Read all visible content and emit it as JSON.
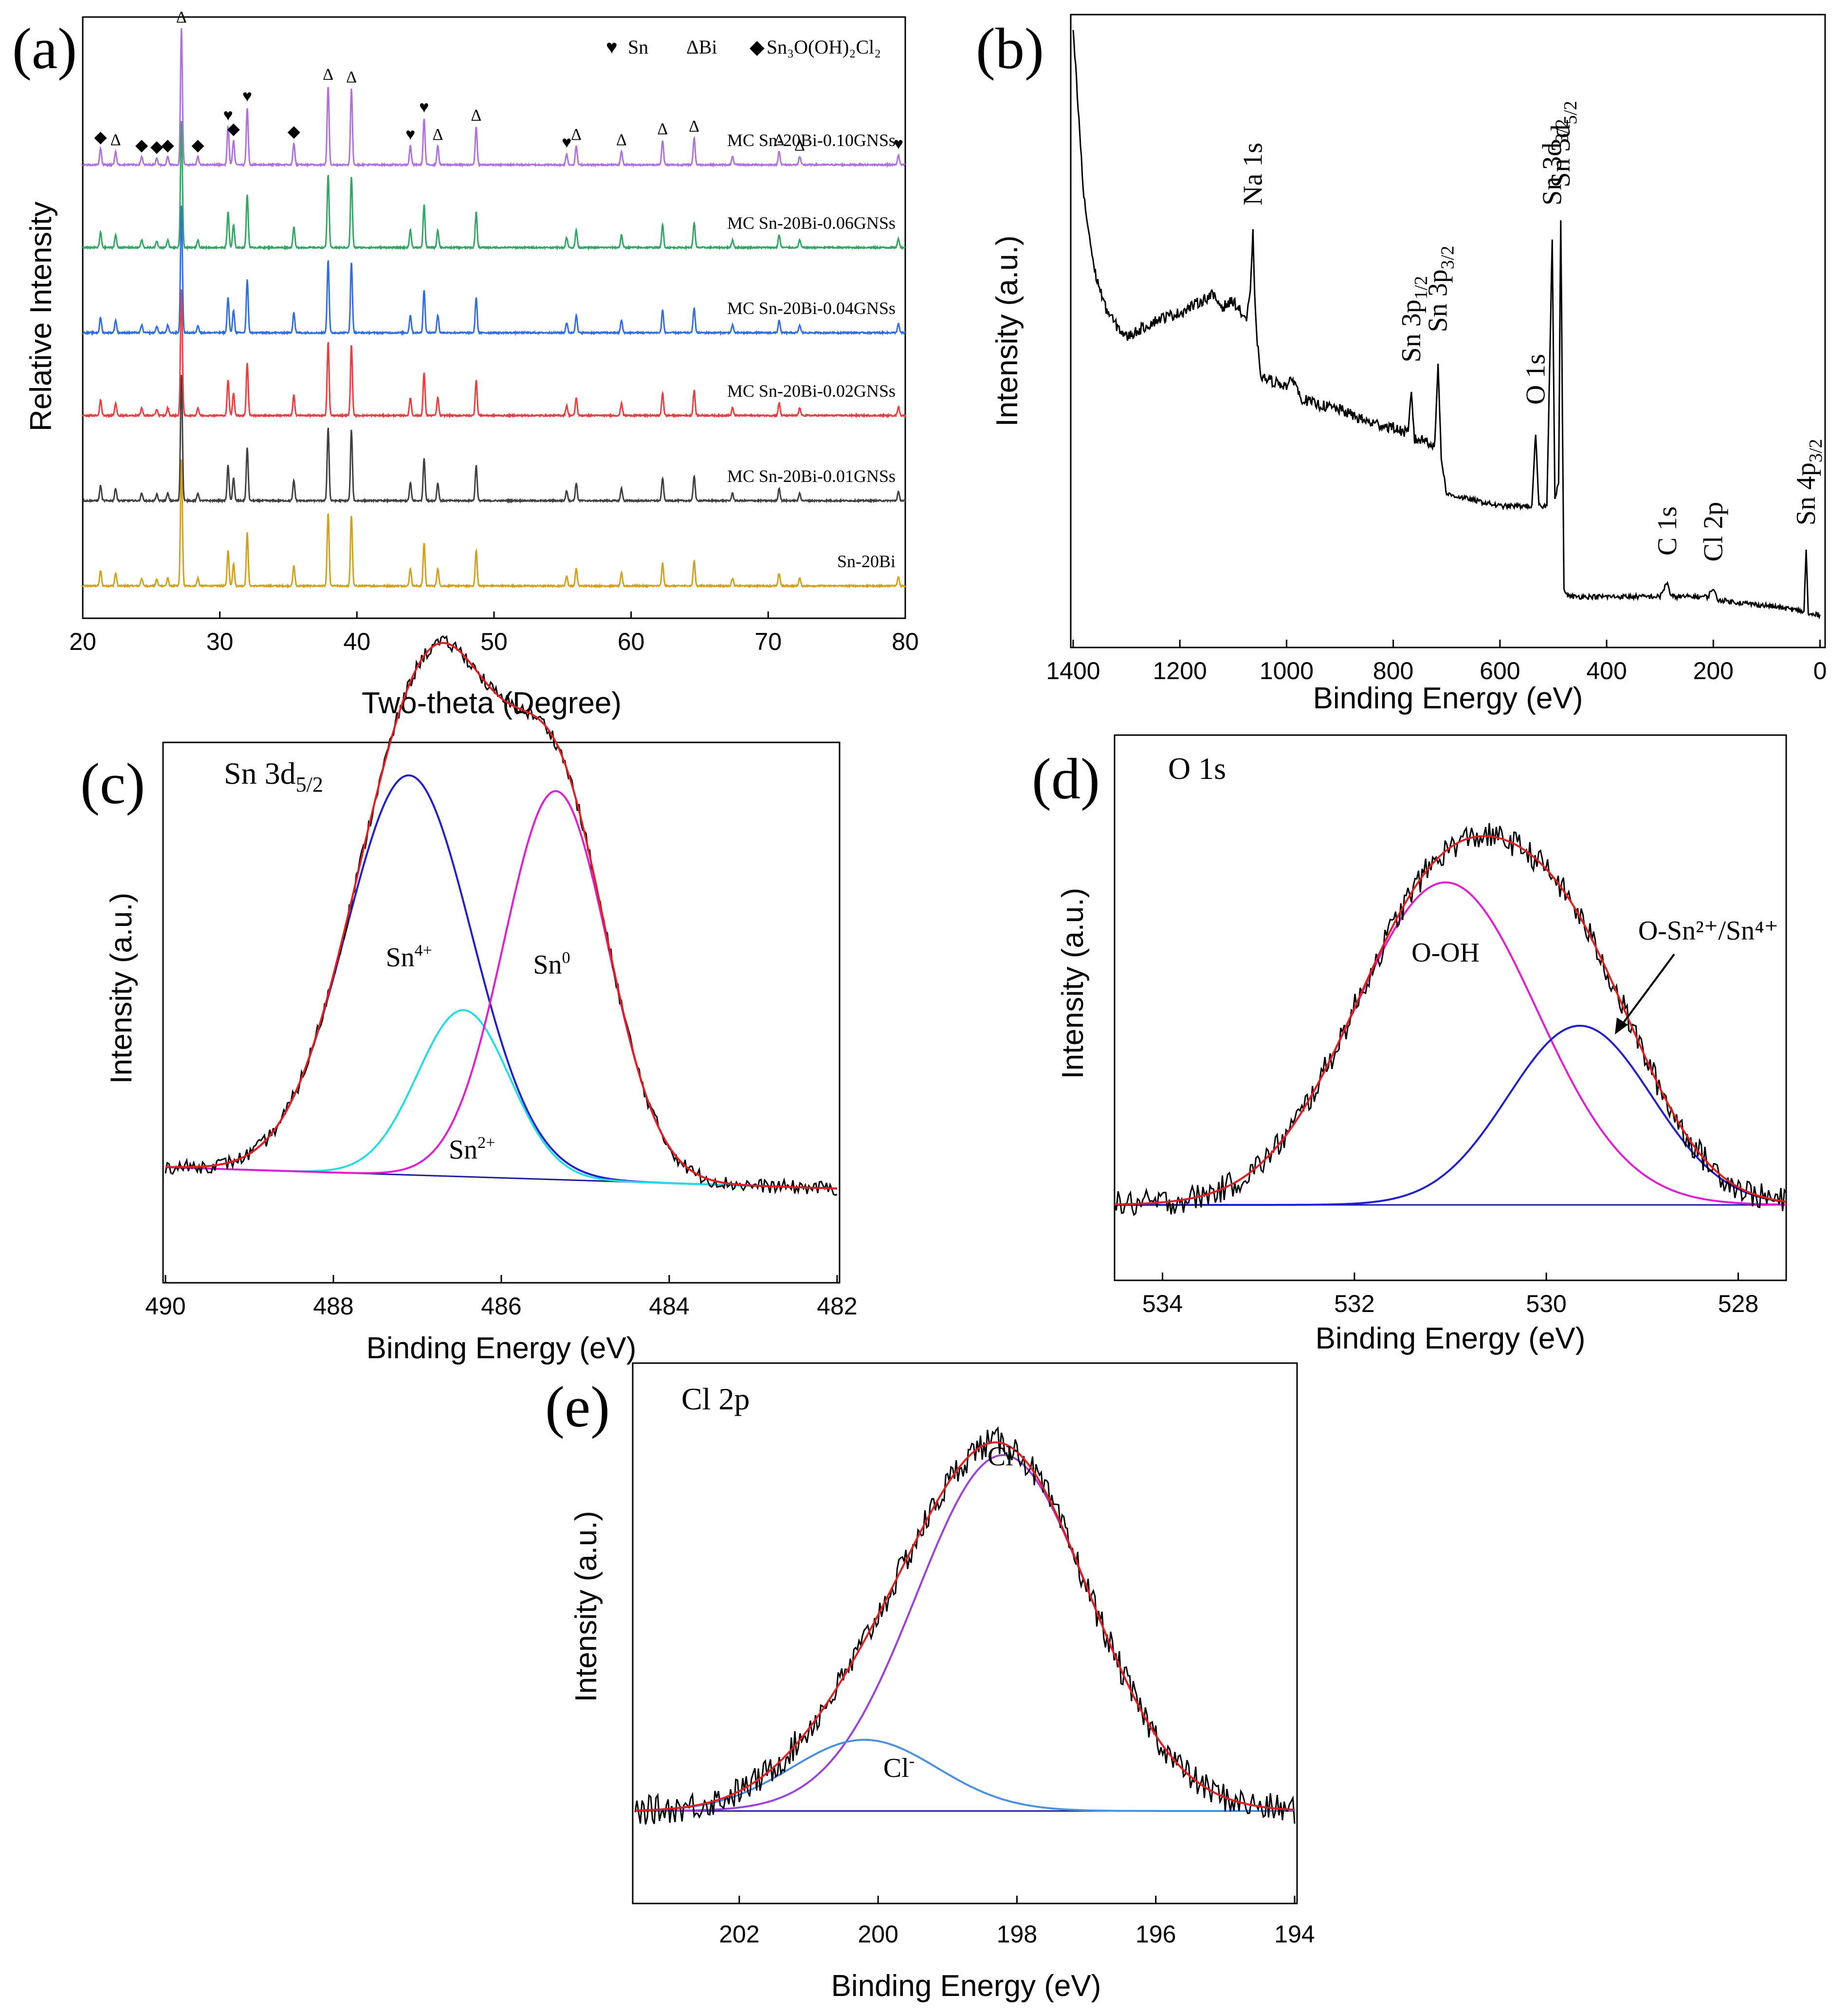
{
  "chart_data": [
    {
      "panel": "(a)",
      "type": "line",
      "xlabel": "Two-theta (Degree)",
      "ylabel": "Relative Intensity",
      "xlim": [
        20,
        80
      ],
      "xticks": [
        "20",
        "30",
        "40",
        "50",
        "60",
        "70",
        "80"
      ],
      "legend": {
        "sn": "Sn",
        "bi": "ΔBi",
        "sn3": "Sn₃O(OH)₂Cl₂"
      },
      "legend_marks": {
        "sn": "♥",
        "bi": "Δ",
        "sn3": "◆"
      },
      "series": [
        {
          "name": "Sn-20Bi",
          "color": "#d4a017"
        },
        {
          "name": "MC Sn-20Bi-0.01GNSs",
          "color": "#404040"
        },
        {
          "name": "MC Sn-20Bi-0.02GNSs",
          "color": "#f03c3c"
        },
        {
          "name": "MC Sn-20Bi-0.04GNSs",
          "color": "#2e6ee0"
        },
        {
          "name": "MC Sn-20Bi-0.06GNSs",
          "color": "#2fa862"
        },
        {
          "name": "MC Sn-20Bi-0.10GNSs",
          "color": "#b070e0"
        }
      ],
      "peaks": [
        {
          "x": 21.3,
          "h": 0.12
        },
        {
          "x": 22.4,
          "h": 0.1
        },
        {
          "x": 24.3,
          "h": 0.06
        },
        {
          "x": 25.4,
          "h": 0.05
        },
        {
          "x": 26.2,
          "h": 0.06
        },
        {
          "x": 27.2,
          "h": 1.0
        },
        {
          "x": 28.4,
          "h": 0.06
        },
        {
          "x": 30.6,
          "h": 0.28
        },
        {
          "x": 31.0,
          "h": 0.18
        },
        {
          "x": 32.0,
          "h": 0.42
        },
        {
          "x": 35.4,
          "h": 0.16
        },
        {
          "x": 37.9,
          "h": 0.58
        },
        {
          "x": 39.6,
          "h": 0.56
        },
        {
          "x": 43.9,
          "h": 0.14
        },
        {
          "x": 44.9,
          "h": 0.34
        },
        {
          "x": 45.9,
          "h": 0.14
        },
        {
          "x": 48.7,
          "h": 0.28
        },
        {
          "x": 55.3,
          "h": 0.08
        },
        {
          "x": 56.0,
          "h": 0.14
        },
        {
          "x": 59.3,
          "h": 0.1
        },
        {
          "x": 62.3,
          "h": 0.18
        },
        {
          "x": 64.6,
          "h": 0.2
        },
        {
          "x": 67.4,
          "h": 0.06
        },
        {
          "x": 70.8,
          "h": 0.1
        },
        {
          "x": 72.3,
          "h": 0.06
        },
        {
          "x": 79.5,
          "h": 0.07
        }
      ],
      "markers": [
        {
          "x": 21.3,
          "m": "◆"
        },
        {
          "x": 22.4,
          "m": "Δ"
        },
        {
          "x": 24.3,
          "m": "◆"
        },
        {
          "x": 25.4,
          "m": "◆"
        },
        {
          "x": 26.2,
          "m": "◆"
        },
        {
          "x": 27.2,
          "m": "Δ"
        },
        {
          "x": 28.4,
          "m": "◆"
        },
        {
          "x": 30.6,
          "m": "♥"
        },
        {
          "x": 31.0,
          "m": "◆"
        },
        {
          "x": 32.0,
          "m": "♥"
        },
        {
          "x": 35.4,
          "m": "◆"
        },
        {
          "x": 37.9,
          "m": "Δ"
        },
        {
          "x": 39.6,
          "m": "Δ"
        },
        {
          "x": 43.9,
          "m": "♥"
        },
        {
          "x": 44.9,
          "m": "♥"
        },
        {
          "x": 45.9,
          "m": "Δ"
        },
        {
          "x": 48.7,
          "m": "Δ"
        },
        {
          "x": 55.3,
          "m": "♥"
        },
        {
          "x": 56.0,
          "m": "Δ"
        },
        {
          "x": 59.3,
          "m": "Δ"
        },
        {
          "x": 62.3,
          "m": "Δ"
        },
        {
          "x": 64.6,
          "m": "Δ"
        },
        {
          "x": 70.8,
          "m": "Δ"
        },
        {
          "x": 72.3,
          "m": "Δ"
        },
        {
          "x": 79.5,
          "m": "♥"
        }
      ]
    },
    {
      "panel": "(b)",
      "type": "line",
      "xlabel": "Binding Energy (eV)",
      "ylabel": "Intensity (a.u.)",
      "xlim": [
        1400,
        0
      ],
      "xticks": [
        "1400",
        "1200",
        "1000",
        "800",
        "600",
        "400",
        "200",
        "0"
      ],
      "survey": [
        [
          1400,
          1.0
        ],
        [
          1380,
          0.72
        ],
        [
          1360,
          0.6
        ],
        [
          1340,
          0.54
        ],
        [
          1320,
          0.51
        ],
        [
          1300,
          0.49
        ],
        [
          1280,
          0.5
        ],
        [
          1260,
          0.51
        ],
        [
          1240,
          0.52
        ],
        [
          1200,
          0.53
        ],
        [
          1160,
          0.55
        ],
        [
          1140,
          0.56
        ],
        [
          1120,
          0.54
        ],
        [
          1100,
          0.55
        ],
        [
          1085,
          0.53
        ],
        [
          1075,
          0.52
        ],
        [
          1068,
          0.56
        ],
        [
          1063,
          0.66
        ],
        [
          1058,
          0.52
        ],
        [
          1050,
          0.43
        ],
        [
          1040,
          0.42
        ],
        [
          1000,
          0.41
        ],
        [
          985,
          0.42
        ],
        [
          975,
          0.39
        ],
        [
          950,
          0.38
        ],
        [
          900,
          0.37
        ],
        [
          850,
          0.35
        ],
        [
          800,
          0.34
        ],
        [
          772,
          0.33
        ],
        [
          766,
          0.4
        ],
        [
          760,
          0.32
        ],
        [
          740,
          0.32
        ],
        [
          722,
          0.31
        ],
        [
          716,
          0.45
        ],
        [
          710,
          0.29
        ],
        [
          700,
          0.23
        ],
        [
          650,
          0.22
        ],
        [
          600,
          0.21
        ],
        [
          560,
          0.21
        ],
        [
          540,
          0.21
        ],
        [
          533,
          0.33
        ],
        [
          527,
          0.21
        ],
        [
          512,
          0.21
        ],
        [
          502,
          0.66
        ],
        [
          497,
          0.22
        ],
        [
          490,
          0.25
        ],
        [
          486,
          0.69
        ],
        [
          480,
          0.07
        ],
        [
          470,
          0.06
        ],
        [
          400,
          0.06
        ],
        [
          300,
          0.06
        ],
        [
          286,
          0.085
        ],
        [
          280,
          0.06
        ],
        [
          210,
          0.06
        ],
        [
          200,
          0.075
        ],
        [
          193,
          0.055
        ],
        [
          150,
          0.05
        ],
        [
          100,
          0.045
        ],
        [
          60,
          0.04
        ],
        [
          30,
          0.035
        ],
        [
          26,
          0.14
        ],
        [
          22,
          0.03
        ],
        [
          0,
          0.03
        ]
      ],
      "peak_labels": [
        {
          "x": 1063,
          "y": 0.7,
          "label": "Na 1s",
          "sub": ""
        },
        {
          "x": 766,
          "y": 0.44,
          "label": "Sn 3p",
          "sub": "1/2"
        },
        {
          "x": 716,
          "y": 0.49,
          "label": "Sn 3p",
          "sub": "3/2"
        },
        {
          "x": 533,
          "y": 0.37,
          "label": "O 1s",
          "sub": ""
        },
        {
          "x": 502,
          "y": 0.7,
          "label": "Sn 3d",
          "sub": "3/2"
        },
        {
          "x": 486,
          "y": 0.73,
          "label": "Sn 3d",
          "sub": "5/2"
        },
        {
          "x": 286,
          "y": 0.12,
          "label": "C 1s",
          "sub": ""
        },
        {
          "x": 200,
          "y": 0.11,
          "label": "Cl 2p",
          "sub": ""
        },
        {
          "x": 26,
          "y": 0.17,
          "label": "Sn 4p",
          "sub": "3/2"
        }
      ]
    },
    {
      "panel": "(c)",
      "type": "line",
      "title_base": "Sn 3d",
      "title_sub": "5/2",
      "xlabel": "Binding Energy (eV)",
      "ylabel": "Intensity (a.u.)",
      "xlim": [
        490,
        482
      ],
      "xticks": [
        "490",
        "488",
        "486",
        "484",
        "482"
      ],
      "components": [
        {
          "label": "Sn",
          "sup": "4+",
          "center": 487.1,
          "height": 0.72,
          "sigma": 0.75,
          "color": "#1f1fd0"
        },
        {
          "label": "Sn",
          "sup": "2+",
          "center": 486.45,
          "height": 0.3,
          "sigma": 0.55,
          "color": "#22dde6"
        },
        {
          "label": "Sn",
          "sup": "0",
          "center": 485.35,
          "height": 0.7,
          "sigma": 0.62,
          "color": "#e01ed0"
        }
      ],
      "background": [
        [
          489.8,
          0.045
        ],
        [
          482.5,
          0.01
        ]
      ],
      "fit_color": "#e02020"
    },
    {
      "panel": "(d)",
      "type": "line",
      "title": "O 1s",
      "xlabel": "Binding Energy (eV)",
      "ylabel": "Intensity (a.u.)",
      "xlim": [
        534.5,
        527.5
      ],
      "xticks": [
        "534",
        "532",
        "530",
        "528"
      ],
      "components": [
        {
          "label": "O-OH",
          "sup": "",
          "center": 531.05,
          "height": 0.72,
          "sigma": 0.95,
          "color": "#e01ed0"
        },
        {
          "label": "O-Sn²⁺/Sn⁴⁺",
          "sup": "",
          "center": 529.65,
          "height": 0.4,
          "sigma": 0.75,
          "color": "#1f1fd0"
        }
      ],
      "baseline": 0.0,
      "fit_color": "#e02020"
    },
    {
      "panel": "(e)",
      "type": "line",
      "title": "Cl 2p",
      "xlabel": "Binding Energy (eV)",
      "ylabel": "Intensity (a.u.)",
      "xlim": [
        203.5,
        194
      ],
      "xticks": [
        "202",
        "200",
        "198",
        "196",
        "194"
      ],
      "components": [
        {
          "label": "Cl",
          "sup": "-",
          "center": 198.2,
          "height": 0.85,
          "sigma": 1.25,
          "color": "#9a40e0"
        },
        {
          "label": "Cl",
          "sup": "-",
          "center": 200.2,
          "height": 0.17,
          "sigma": 1.05,
          "color": "#4a90e0"
        }
      ],
      "baseline": 0.0,
      "fit_color": "#e02020"
    }
  ]
}
